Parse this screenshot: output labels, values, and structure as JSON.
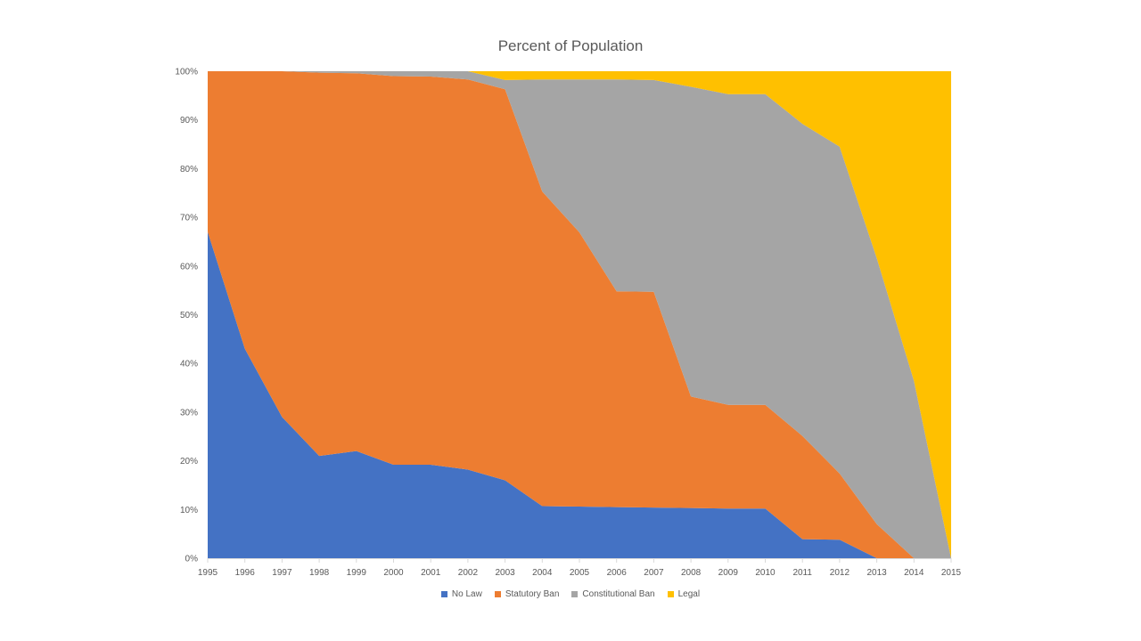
{
  "chart_data": {
    "type": "area",
    "stacked": true,
    "normalized": true,
    "title": "Percent of Population",
    "x": [
      "1995",
      "1996",
      "1997",
      "1998",
      "1999",
      "2000",
      "2001",
      "2002",
      "2003",
      "2004",
      "2005",
      "2006",
      "2007",
      "2008",
      "2009",
      "2010",
      "2011",
      "2012",
      "2013",
      "2014",
      "2015"
    ],
    "ylim": [
      0,
      100
    ],
    "y_ticks": [
      "0%",
      "10%",
      "20%",
      "30%",
      "40%",
      "50%",
      "60%",
      "70%",
      "80%",
      "90%",
      "100%"
    ],
    "legend_position": "bottom",
    "grid": false,
    "series": [
      {
        "name": "No Law",
        "color": "#4472C4",
        "values": [
          67,
          43,
          29,
          21,
          22,
          19.2,
          19.2,
          18.2,
          16,
          10.7,
          10.6,
          10.5,
          10.4,
          10.3,
          10.2,
          10.2,
          3.9,
          3.8,
          0,
          0,
          0
        ]
      },
      {
        "name": "Statutory Ban",
        "color": "#ED7D31",
        "values": [
          33,
          57,
          71,
          78.7,
          77.6,
          79.8,
          79.7,
          80.1,
          80.3,
          64.6,
          56.3,
          44.3,
          44.3,
          22.9,
          21.3,
          21.3,
          21.2,
          13.6,
          7,
          0,
          0
        ]
      },
      {
        "name": "Constitutional Ban",
        "color": "#A5A5A5",
        "values": [
          0,
          0,
          0,
          0.3,
          0.4,
          1,
          1.1,
          1.7,
          1.9,
          23,
          31.4,
          43.5,
          43.5,
          63.6,
          63.8,
          63.8,
          64.1,
          67.1,
          54.6,
          36.4,
          0
        ]
      },
      {
        "name": "Legal",
        "color": "#FFC000",
        "values": [
          0,
          0,
          0,
          0,
          0,
          0,
          0,
          0,
          1.8,
          1.7,
          1.7,
          1.7,
          1.8,
          3.2,
          4.7,
          4.7,
          10.8,
          15.5,
          38.4,
          63.6,
          100
        ]
      }
    ]
  }
}
